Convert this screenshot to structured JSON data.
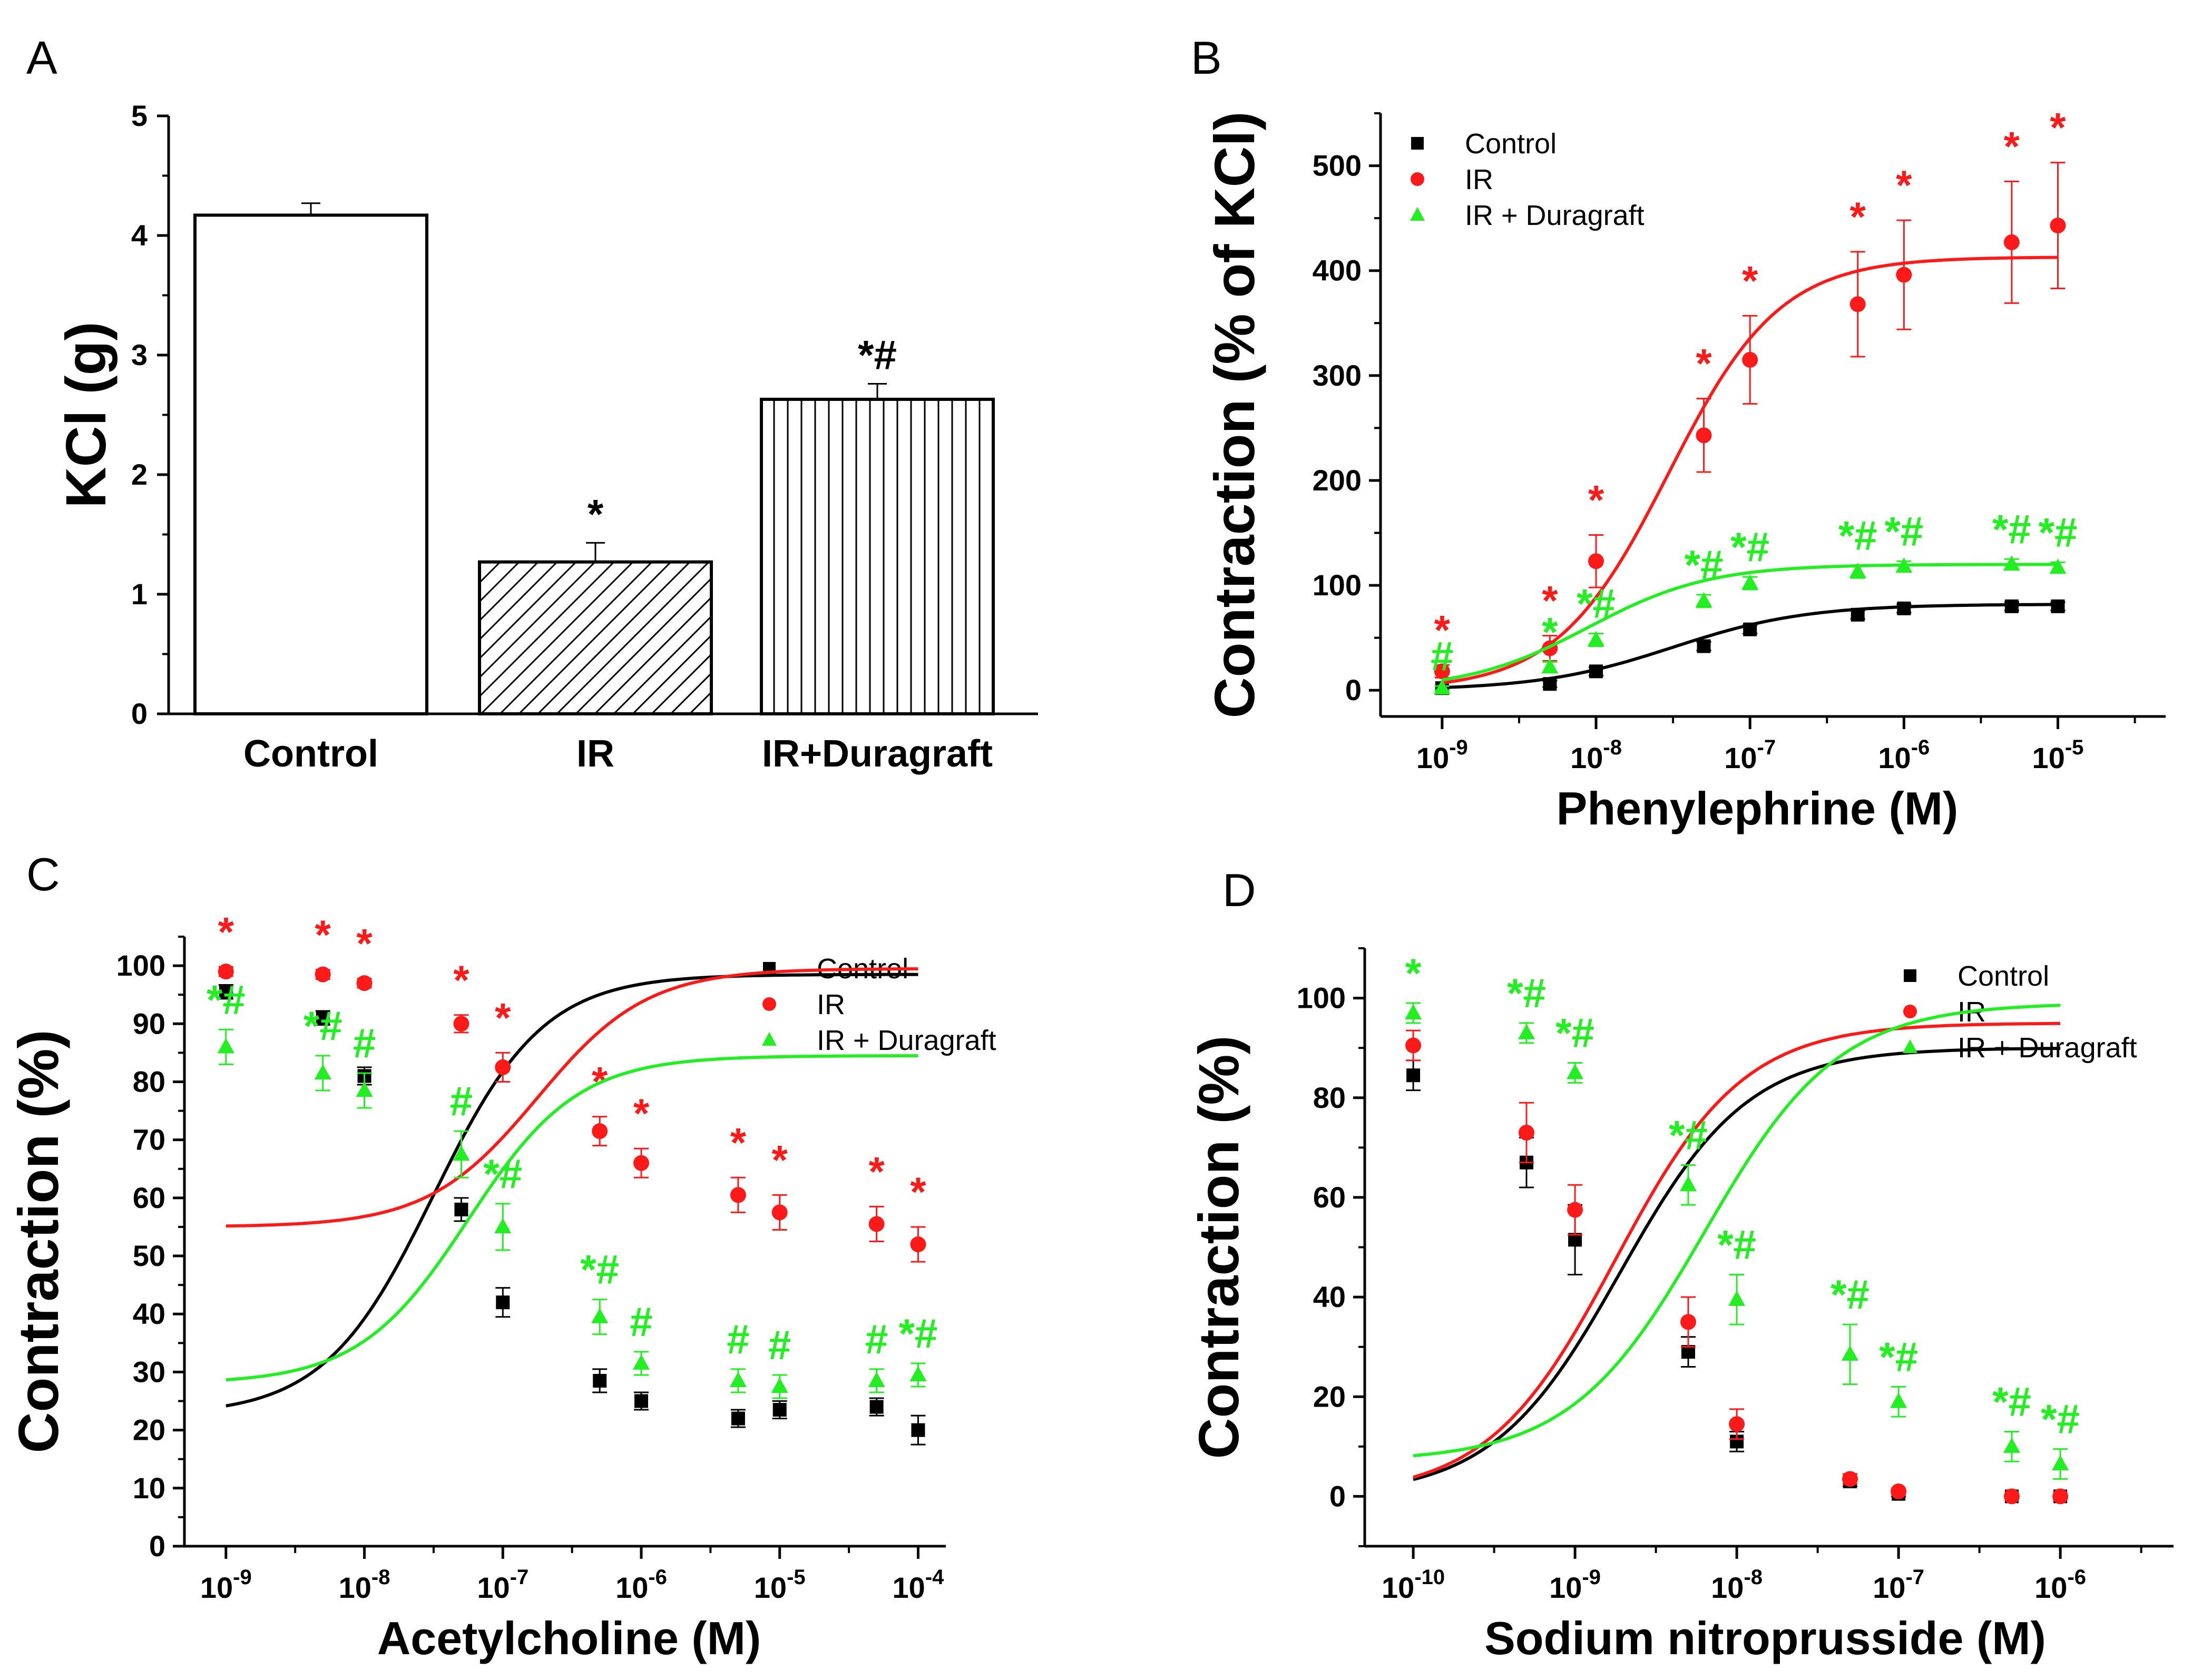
{
  "colors": {
    "control": "#000000",
    "ir": "#ff1a1a",
    "ir_duragraft": "#22ee22"
  },
  "chart_data": [
    {
      "panel": "A",
      "type": "bar",
      "ylabel": "KCl (g)",
      "ylim": [
        0,
        5
      ],
      "yticks": [
        "0",
        "1",
        "2",
        "3",
        "4",
        "5"
      ],
      "categories": [
        "Control",
        "IR",
        "IR+Duragraft"
      ],
      "values": [
        4.17,
        1.27,
        2.63
      ],
      "errors": [
        0.1,
        0.16,
        0.13
      ],
      "patterns": [
        "none",
        "diagonal",
        "vertical"
      ],
      "annotations": [
        "",
        "*",
        "*#"
      ]
    },
    {
      "panel": "B",
      "type": "scatter",
      "xlabel": "Phenylephrine (M)",
      "ylabel": "Contraction (% of KCl)",
      "xlog": true,
      "xlim": [
        -9.4,
        -4.3
      ],
      "ylim": [
        -25,
        550
      ],
      "yticks": [
        "0",
        "100",
        "200",
        "300",
        "400",
        "500"
      ],
      "xtick_exponents": [
        "-9",
        "-8",
        "-7",
        "-6",
        "-5"
      ],
      "x": [
        -9,
        -8.3,
        -8,
        -7.3,
        -7,
        -6.3,
        -6,
        -5.3,
        -5
      ],
      "series": [
        {
          "name": "Control",
          "color": "control",
          "marker": "square",
          "values": [
            2,
            6,
            18,
            42,
            58,
            72,
            78,
            80,
            80
          ],
          "errors": [
            2,
            3,
            4,
            4,
            4,
            4,
            4,
            4,
            4
          ],
          "fit": {
            "bottom": 0,
            "top": 82,
            "logec50": -7.5,
            "slope": 1
          },
          "annotations": [
            "",
            "",
            "",
            "",
            "",
            "",
            "",
            "",
            ""
          ]
        },
        {
          "name": "IR",
          "color": "ir",
          "marker": "circle",
          "values": [
            18,
            40,
            123,
            243,
            315,
            368,
            396,
            427,
            443
          ],
          "errors": [
            6,
            12,
            25,
            35,
            42,
            50,
            52,
            58,
            60
          ],
          "fit": {
            "bottom": 0,
            "top": 413,
            "logec50": -7.53,
            "slope": 1.2
          },
          "annotations": [
            "*",
            "*",
            "*",
            "*",
            "*",
            "*",
            "*",
            "*",
            "*"
          ]
        },
        {
          "name": "IR + Duragraft",
          "color": "ir_duragraft",
          "marker": "triangle",
          "values": [
            2,
            22,
            48,
            85,
            102,
            113,
            118,
            120,
            117
          ],
          "errors": [
            2,
            5,
            6,
            6,
            6,
            6,
            5,
            5,
            5
          ],
          "fit": {
            "bottom": 0,
            "top": 120,
            "logec50": -8.05,
            "slope": 1.1
          },
          "annotations": [
            "#",
            "*",
            "*#",
            "*#",
            "*#",
            "*#",
            "*#",
            "*#",
            "*#"
          ]
        }
      ]
    },
    {
      "panel": "C",
      "type": "scatter",
      "xlabel": "Acetylcholine (M)",
      "ylabel": "Contraction (%)",
      "xlog": true,
      "xlim": [
        -9.3,
        -3.8
      ],
      "ylim": [
        0,
        105
      ],
      "yticks": [
        "0",
        "10",
        "20",
        "30",
        "40",
        "50",
        "60",
        "70",
        "80",
        "90",
        "100"
      ],
      "xtick_exponents": [
        "-9",
        "-8",
        "-7",
        "-6",
        "-5",
        "-4"
      ],
      "x": [
        -9,
        -8.3,
        -8,
        -7.3,
        -7,
        -6.3,
        -6,
        -5.3,
        -5,
        -4.3,
        -4
      ],
      "series": [
        {
          "name": "Control",
          "color": "control",
          "marker": "square",
          "values": [
            95.5,
            91,
            81,
            58,
            42,
            28.5,
            25,
            22,
            23.5,
            24,
            20
          ],
          "errors": [
            1.2,
            1.2,
            1.5,
            2,
            2.5,
            2,
            1.5,
            1.5,
            1.5,
            1.5,
            2.5
          ],
          "fit": {
            "top": 98.5,
            "bottom": 22.5,
            "logec50": -7.5,
            "slope": 1.1
          },
          "annotations": [
            "",
            "",
            "",
            "",
            "",
            "",
            "",
            "",
            "",
            "",
            ""
          ]
        },
        {
          "name": "IR",
          "color": "ir",
          "marker": "circle",
          "values": [
            99,
            98.5,
            97,
            90,
            82.5,
            71.5,
            66,
            60.5,
            57.5,
            55.5,
            52
          ],
          "errors": [
            0.8,
            0.8,
            0.8,
            1.5,
            2.5,
            2.5,
            2.5,
            3,
            3,
            3,
            3
          ],
          "fit": {
            "top": 99.5,
            "bottom": 55,
            "logec50": -6.75,
            "slope": 1.1
          },
          "annotations": [
            "*",
            "*",
            "*",
            "*",
            "*",
            "*",
            "*",
            "*",
            "*",
            "*",
            "*"
          ]
        },
        {
          "name": "IR + Duragraft",
          "color": "ir_duragraft",
          "marker": "triangle",
          "values": [
            86,
            81.5,
            78.5,
            67.5,
            55,
            39.5,
            31.5,
            28.5,
            27.5,
            28.5,
            29.5
          ],
          "errors": [
            3,
            3,
            3,
            4,
            4,
            3,
            2,
            2,
            2,
            2,
            2
          ],
          "fit": {
            "top": 84.5,
            "bottom": 28,
            "logec50": -7.25,
            "slope": 1.1
          },
          "annotations": [
            "*#",
            "*#",
            "#",
            "#",
            "*#",
            "*#",
            "#",
            "#",
            "#",
            "#",
            "*#"
          ]
        }
      ]
    },
    {
      "panel": "D",
      "type": "scatter",
      "xlabel": "Sodium nitroprusside (M)",
      "ylabel": "Contraction (%)",
      "xlog": true,
      "xlim": [
        -10.3,
        -5.3
      ],
      "ylim": [
        -10,
        110
      ],
      "yticks": [
        "0",
        "20",
        "40",
        "60",
        "80",
        "100"
      ],
      "xtick_exponents": [
        "-10",
        "-9",
        "-8",
        "-7",
        "-6"
      ],
      "x": [
        -10,
        -9.3,
        -9,
        -8.3,
        -8,
        -7.3,
        -7,
        -6.3,
        -6
      ],
      "series": [
        {
          "name": "Control",
          "color": "control",
          "marker": "square",
          "values": [
            84.5,
            67,
            51.5,
            29,
            11,
            3,
            0.5,
            0,
            0
          ],
          "errors": [
            3,
            5,
            7,
            3,
            2,
            1,
            0.5,
            0.5,
            0.5
          ],
          "fit": {
            "top": 90,
            "bottom": 0,
            "logec50": -8.72,
            "slope": 1.1
          },
          "annotations": [
            "",
            "",
            "",
            "",
            "",
            "",
            "",
            "",
            ""
          ]
        },
        {
          "name": "IR",
          "color": "ir",
          "marker": "circle",
          "values": [
            90.5,
            73,
            57.5,
            35,
            14.5,
            3.5,
            1,
            0,
            0
          ],
          "errors": [
            3,
            6,
            5,
            5,
            3,
            1,
            0.5,
            0.5,
            0.5
          ],
          "fit": {
            "top": 95,
            "bottom": 0,
            "logec50": -8.75,
            "slope": 1.1
          },
          "annotations": [
            "",
            "",
            "",
            "",
            "",
            "",
            "",
            "",
            ""
          ]
        },
        {
          "name": "IR + Duragraft",
          "color": "ir_duragraft",
          "marker": "triangle",
          "values": [
            97,
            93,
            85,
            62.5,
            39.5,
            28.5,
            19,
            10,
            6.5
          ],
          "errors": [
            2,
            2,
            2,
            4,
            5,
            6,
            3,
            3,
            3
          ],
          "fit": {
            "top": 99,
            "bottom": 7,
            "logec50": -8.2,
            "slope": 1.05
          },
          "annotations": [
            "*",
            "*#",
            "*#",
            "*#",
            "*#",
            "*#",
            "*#",
            "*#",
            "*#"
          ]
        }
      ]
    }
  ]
}
